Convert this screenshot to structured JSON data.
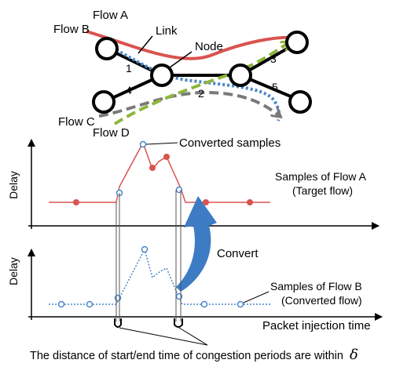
{
  "network": {
    "flow_a": "Flow A",
    "flow_b": "Flow B",
    "flow_c": "Flow C",
    "flow_d": "Flow D",
    "link": "Link",
    "node": "Node",
    "link_numbers": [
      "1",
      "2",
      "3",
      "4",
      "5"
    ]
  },
  "upper_plot": {
    "y_label": "Delay",
    "callout": "Converted samples",
    "series_label_line1": "Samples of Flow A",
    "series_label_line2": "(Target flow)"
  },
  "lower_plot": {
    "y_label": "Delay",
    "x_label": "Packet injection time",
    "series_label_line1": "Samples of Flow B",
    "series_label_line2": "(Converted flow)"
  },
  "convert_label": "Convert",
  "caption": "The distance of start/end time of congestion periods are within",
  "caption_symbol": "δ",
  "colors": {
    "flow_a": "#d9534f",
    "flow_b": "#4a86c8",
    "flow_c": "#7a7a7a",
    "flow_d": "#8db63c",
    "arrow": "#3d7cc4"
  }
}
